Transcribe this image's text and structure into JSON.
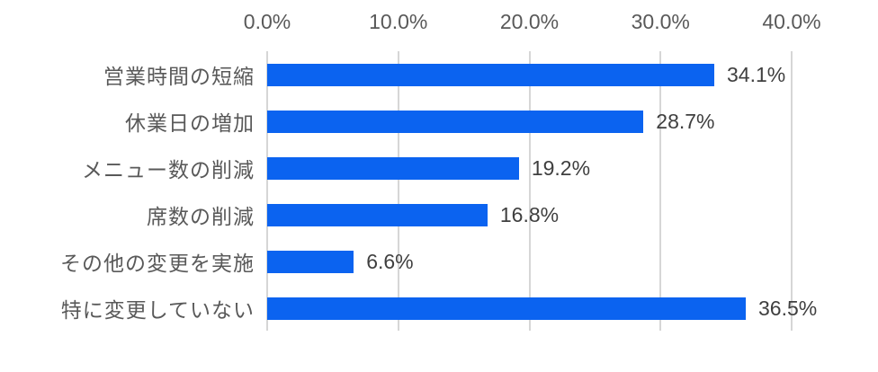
{
  "chart_data": {
    "type": "bar",
    "orientation": "horizontal",
    "title": "",
    "categories": [
      "営業時間の短縮",
      "休業日の増加",
      "メニュー数の削減",
      "席数の削減",
      "その他の変更を実施",
      "特に変更していない"
    ],
    "values": [
      34.1,
      28.7,
      19.2,
      16.8,
      6.6,
      36.5
    ],
    "data_labels": [
      "34.1%",
      "28.7%",
      "19.2%",
      "16.8%",
      "6.6%",
      "36.5%"
    ],
    "xlim": [
      0,
      40
    ],
    "x_ticks": [
      0,
      10,
      20,
      30,
      40
    ],
    "x_tick_labels": [
      "0.0%",
      "10.0%",
      "20.0%",
      "30.0%",
      "40.0%"
    ],
    "axis_position": "top",
    "grid": true,
    "legend": false,
    "colors": {
      "bar": "#0b63f0",
      "gridline": "#d6d6d6",
      "category_label": "#595959",
      "tick_label": "#595959",
      "value_label": "#3f3f3f",
      "background": "#ffffff"
    }
  }
}
